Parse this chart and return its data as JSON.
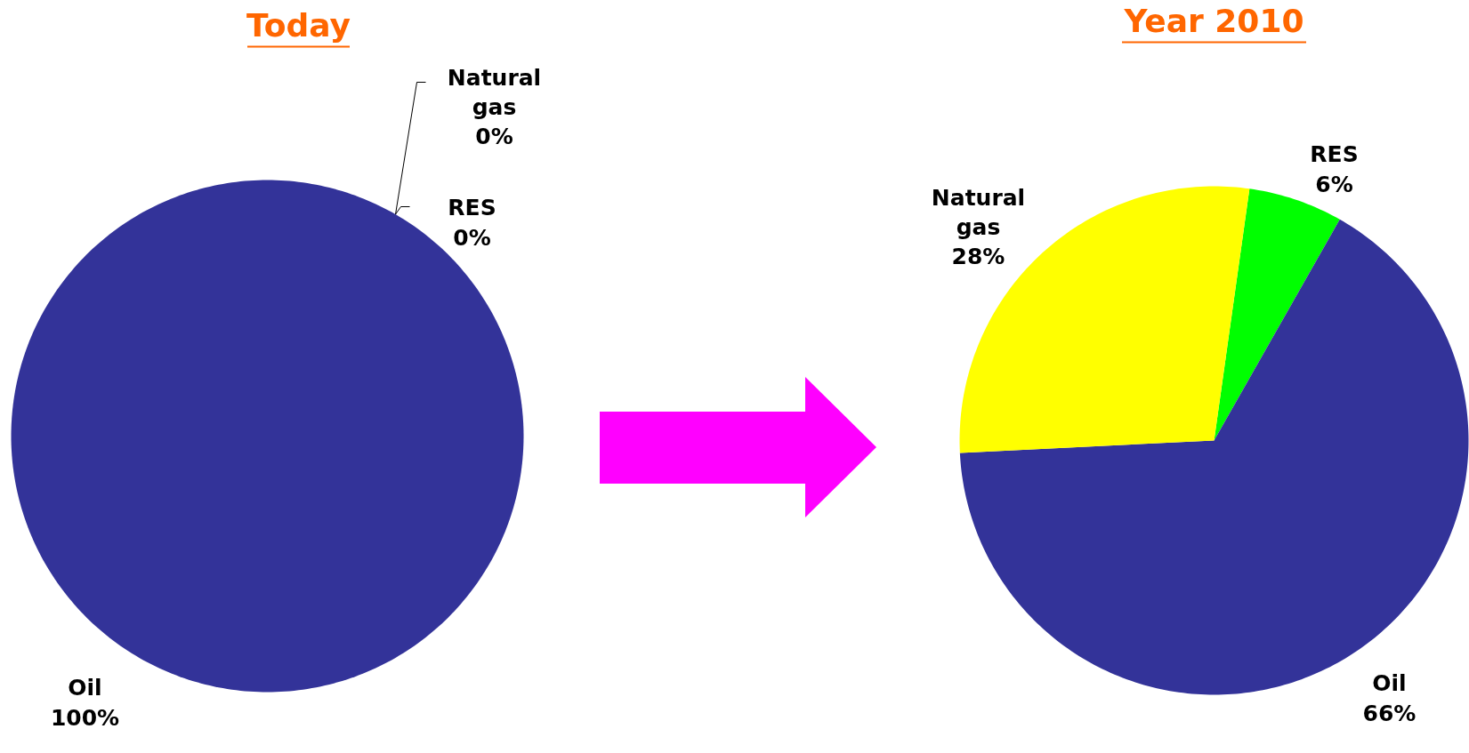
{
  "chart_data": [
    {
      "type": "pie",
      "title": "Today",
      "categories": [
        "Oil",
        "RES",
        "Natural gas"
      ],
      "values": [
        100,
        0,
        0
      ],
      "value_labels": [
        "100%",
        "0%",
        "0%"
      ],
      "colors": [
        "#333399",
        "#00ff00",
        "#ffff00"
      ]
    },
    {
      "type": "pie",
      "title": "Year 2010",
      "categories": [
        "RES",
        "Oil",
        "Natural gas"
      ],
      "values": [
        6,
        66,
        28
      ],
      "value_labels": [
        "6%",
        "66%",
        "28%"
      ],
      "colors": [
        "#00ff00",
        "#333399",
        "#ffff00"
      ]
    }
  ]
}
